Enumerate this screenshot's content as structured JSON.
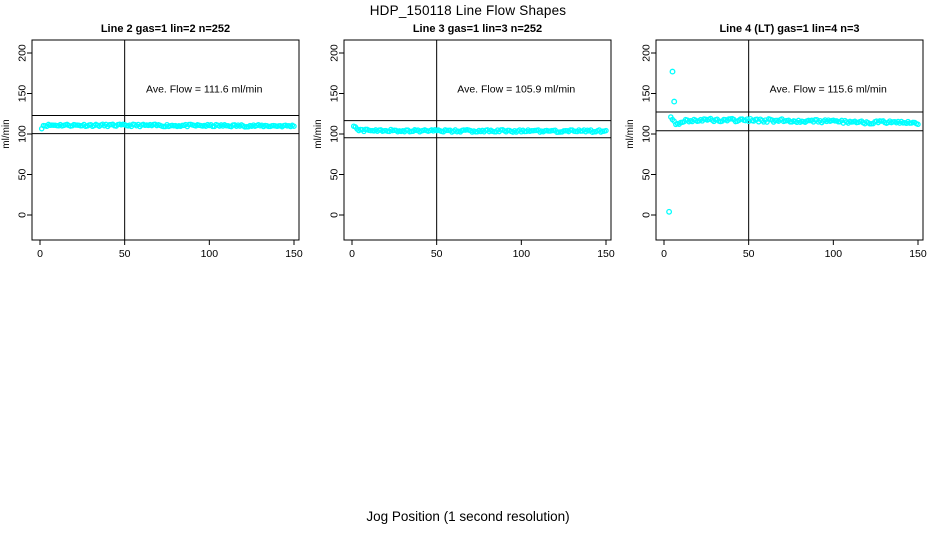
{
  "figure": {
    "title": "HDP_150118  Line Flow Shapes",
    "xlabel": "Jog Position (1 second resolution)",
    "background": "#ffffff",
    "text_color": "#000000",
    "point_color": "#00ffff",
    "ref_line_color": "#000000"
  },
  "chart_data": [
    {
      "type": "scatter",
      "title": "Line 2 gas=1 lin=2 n=252",
      "ylabel": "ml/min",
      "xlim": [
        0,
        150
      ],
      "ylim": [
        0,
        200
      ],
      "xticks": [
        0,
        50,
        100,
        150
      ],
      "yticks": [
        0,
        50,
        100,
        150,
        200
      ],
      "grid": false,
      "n": 252,
      "ave_flow": 111.6,
      "annotation": "Ave. Flow =  111.6  ml/min",
      "annotation_xy": [
        97,
        155
      ],
      "vline_x": 50,
      "ref_lines": [
        122.8,
        100.4
      ],
      "band_profile": [
        [
          1,
          108
        ],
        [
          2,
          110.5
        ],
        [
          6,
          111
        ],
        [
          150,
          110
        ]
      ],
      "noise": 1.4,
      "x_start": 1,
      "x_end": 150,
      "draw_points": 150,
      "outliers": [],
      "seed": 11
    },
    {
      "type": "scatter",
      "title": "Line 3 gas=1 lin=3 n=252",
      "ylabel": "ml/min",
      "xlim": [
        0,
        150
      ],
      "ylim": [
        0,
        200
      ],
      "xticks": [
        0,
        50,
        100,
        150
      ],
      "yticks": [
        0,
        50,
        100,
        150,
        200
      ],
      "grid": false,
      "n": 252,
      "ave_flow": 105.9,
      "annotation": "Ave. Flow =  105.9  ml/min",
      "annotation_xy": [
        97,
        155
      ],
      "vline_x": 50,
      "ref_lines": [
        116.5,
        95.3
      ],
      "band_profile": [
        [
          1,
          111
        ],
        [
          2.5,
          106
        ],
        [
          6,
          104.5
        ],
        [
          40,
          104
        ],
        [
          150,
          103.5
        ]
      ],
      "noise": 1.4,
      "x_start": 1,
      "x_end": 150,
      "draw_points": 150,
      "outliers": [],
      "seed": 22
    },
    {
      "type": "scatter",
      "title": "Line 4 (LT) gas=1 lin=4 n=3",
      "ylabel": "ml/min",
      "xlim": [
        0,
        150
      ],
      "ylim": [
        0,
        200
      ],
      "xticks": [
        0,
        50,
        100,
        150
      ],
      "yticks": [
        0,
        50,
        100,
        150,
        200
      ],
      "grid": false,
      "n": 3,
      "ave_flow": 115.6,
      "annotation": "Ave. Flow =  115.6  ml/min",
      "annotation_xy": [
        97,
        155
      ],
      "vline_x": 50,
      "ref_lines": [
        127.2,
        104.0
      ],
      "band_profile": [
        [
          4,
          123
        ],
        [
          6,
          114
        ],
        [
          8,
          112.5
        ],
        [
          13,
          116.5
        ],
        [
          25,
          117.5
        ],
        [
          70,
          116.5
        ],
        [
          110,
          115
        ],
        [
          150,
          113.5
        ]
      ],
      "noise": 2.0,
      "x_start": 4,
      "x_end": 150,
      "draw_points": 150,
      "outliers": [
        [
          5,
          177
        ],
        [
          6,
          140
        ],
        [
          3,
          4
        ]
      ],
      "seed": 33
    }
  ]
}
